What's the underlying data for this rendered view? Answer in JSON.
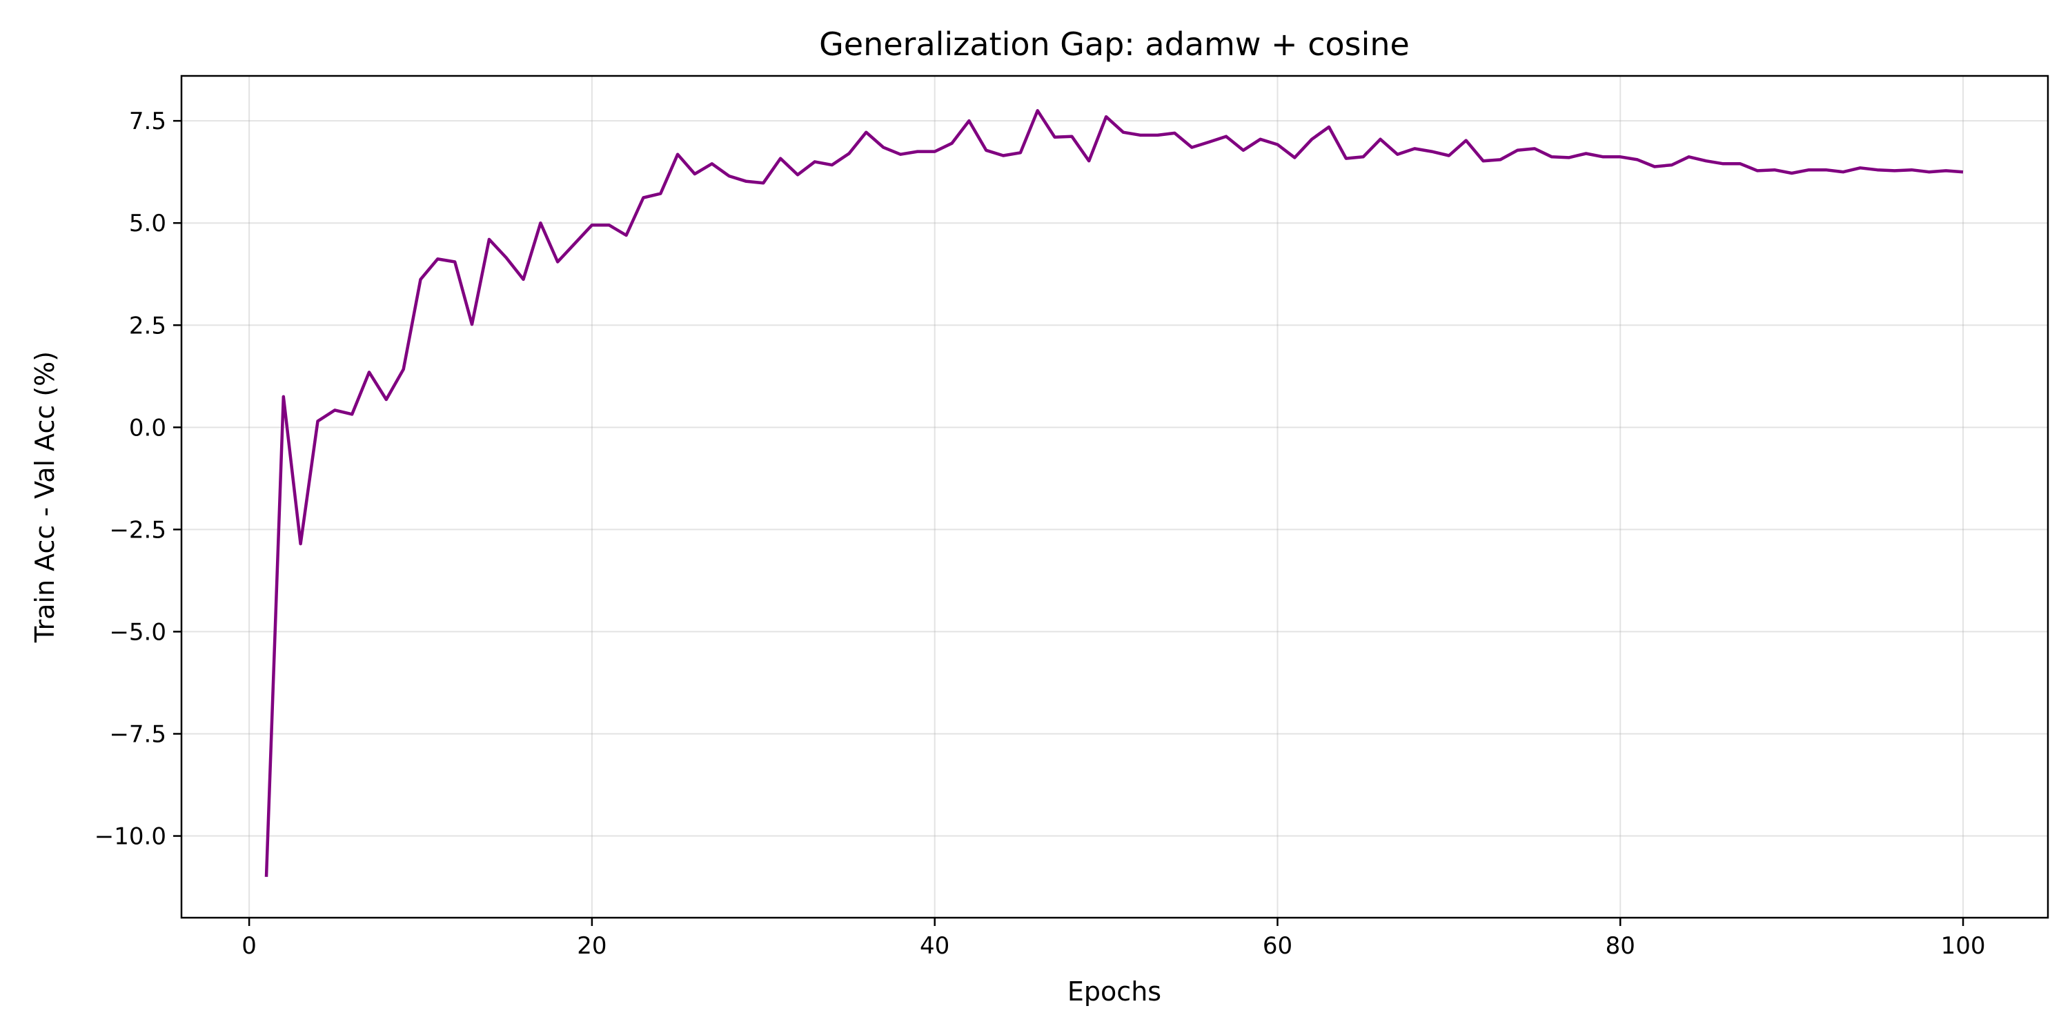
{
  "chart_data": {
    "type": "line",
    "title": "Generalization Gap: adamw + cosine",
    "xlabel": "Epochs",
    "ylabel": "Train Acc - Val Acc (%)",
    "xlim": [
      -3.95,
      104.95
    ],
    "ylim": [
      -12.0,
      8.6
    ],
    "xticks": [
      0,
      20,
      40,
      60,
      80,
      100
    ],
    "xtick_labels": [
      "0",
      "20",
      "40",
      "60",
      "80",
      "100"
    ],
    "yticks": [
      7.5,
      5.0,
      2.5,
      0.0,
      -2.5,
      -5.0,
      -7.5,
      -10.0
    ],
    "ytick_labels": [
      "7.5",
      "5.0",
      "2.5",
      "0.0",
      "−2.5",
      "−5.0",
      "−7.5",
      "−10.0"
    ],
    "grid": true,
    "colors": {
      "line": "#800080"
    },
    "series": [
      {
        "x": [
          1,
          2,
          3,
          4,
          5,
          6,
          7,
          8,
          9,
          10,
          11,
          12,
          13,
          14,
          15,
          16,
          17,
          18,
          19,
          20,
          21,
          22,
          23,
          24,
          25,
          26,
          27,
          28,
          29,
          30,
          31,
          32,
          33,
          34,
          35,
          36,
          37,
          38,
          39,
          40,
          41,
          42,
          43,
          44,
          45,
          46,
          47,
          48,
          49,
          50,
          51,
          52,
          53,
          54,
          55,
          56,
          57,
          58,
          59,
          60,
          61,
          62,
          63,
          64,
          65,
          66,
          67,
          68,
          69,
          70,
          71,
          72,
          73,
          74,
          75,
          76,
          77,
          78,
          79,
          80,
          81,
          82,
          83,
          84,
          85,
          86,
          87,
          88,
          89,
          90,
          91,
          92,
          93,
          94,
          95,
          96,
          97,
          98,
          99,
          100
        ],
        "values": [
          -11.0,
          0.75,
          -2.85,
          0.15,
          0.42,
          0.32,
          1.35,
          0.68,
          1.42,
          3.62,
          4.12,
          4.05,
          2.52,
          4.6,
          4.15,
          3.62,
          5.0,
          4.05,
          4.5,
          4.95,
          4.95,
          4.7,
          5.62,
          5.72,
          6.68,
          6.2,
          6.45,
          6.15,
          6.02,
          5.98,
          6.58,
          6.18,
          6.5,
          6.42,
          6.7,
          7.22,
          6.85,
          6.68,
          6.75,
          6.75,
          6.95,
          7.5,
          6.78,
          6.65,
          6.72,
          7.75,
          7.1,
          7.12,
          6.52,
          7.6,
          7.22,
          7.15,
          7.15,
          7.2,
          6.85,
          6.98,
          7.12,
          6.78,
          7.05,
          6.92,
          6.6,
          7.05,
          7.35,
          6.58,
          6.62,
          7.05,
          6.68,
          6.82,
          6.75,
          6.65,
          7.02,
          6.52,
          6.55,
          6.78,
          6.82,
          6.62,
          6.6,
          6.7,
          6.62,
          6.62,
          6.55,
          6.38,
          6.42,
          6.62,
          6.52,
          6.45,
          6.45,
          6.28,
          6.3,
          6.22,
          6.3,
          6.3,
          6.25,
          6.35,
          6.3,
          6.28,
          6.3,
          6.25,
          6.28,
          6.25
        ]
      }
    ]
  }
}
